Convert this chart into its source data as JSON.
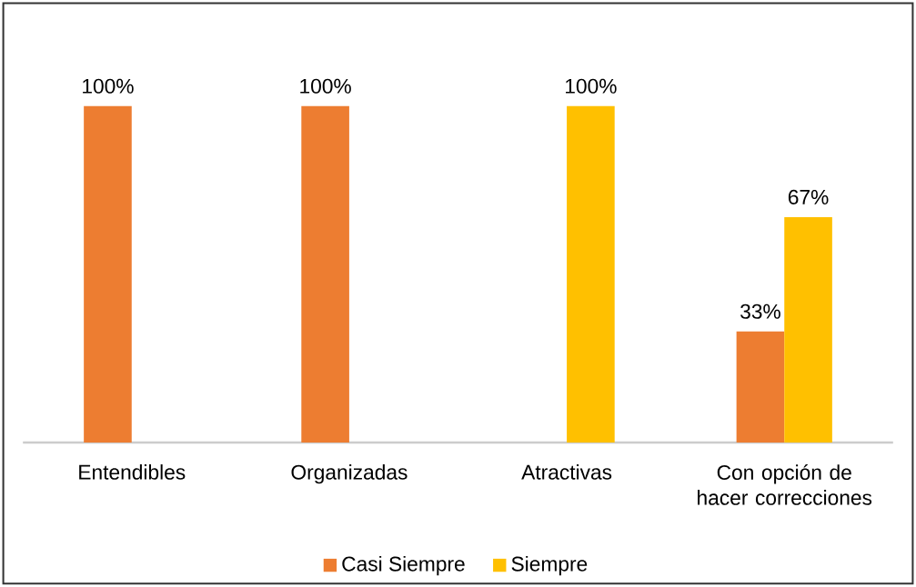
{
  "chart_data": {
    "type": "bar",
    "categories": [
      "Entendibles",
      "Organizadas",
      "Atractivas",
      "Con opción de hacer correcciones"
    ],
    "series": [
      {
        "name": "Casi Siempre",
        "color": "#ed7d31",
        "values": [
          100,
          100,
          null,
          33
        ],
        "value_labels": [
          "100%",
          "100%",
          null,
          "33%"
        ]
      },
      {
        "name": "Siempre",
        "color": "#ffc000",
        "values": [
          null,
          null,
          100,
          67
        ],
        "value_labels": [
          null,
          null,
          "100%",
          "67%"
        ]
      }
    ],
    "legend": "bottom"
  }
}
